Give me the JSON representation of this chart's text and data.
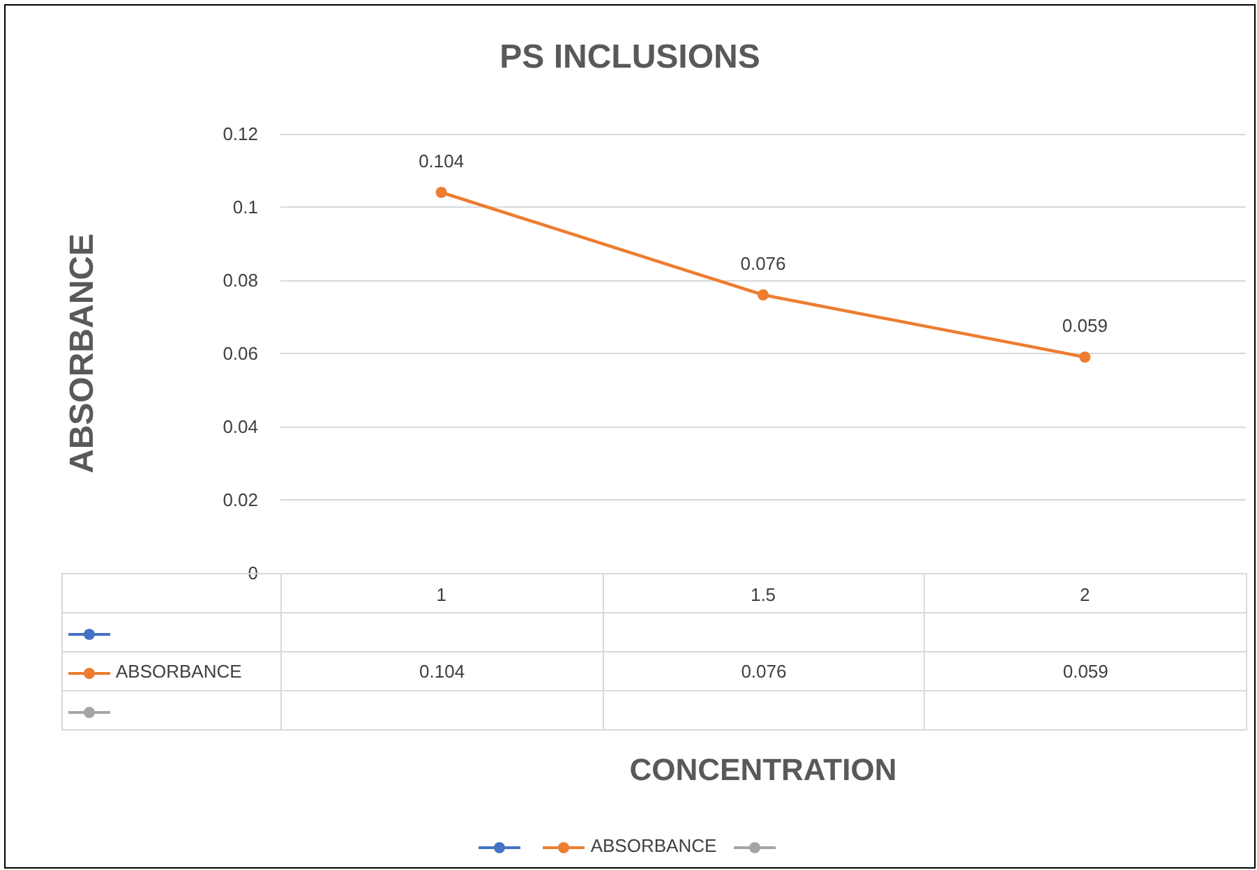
{
  "chart_data": {
    "type": "line",
    "title": "PS INCLUSIONS",
    "xlabel": "CONCENTRATION",
    "ylabel": "ABSORBANCE",
    "categories": [
      "1",
      "1.5",
      "2"
    ],
    "series": [
      {
        "color": "#4472c4",
        "values": [
          null,
          null,
          null
        ]
      },
      {
        "name": "ABSORBANCE",
        "color": "#ed7d31",
        "values": [
          0.104,
          0.076,
          0.059
        ],
        "value_labels": [
          "0.104",
          "0.076",
          "0.059"
        ]
      },
      {
        "color": "#a5a5a5",
        "values": [
          null,
          null,
          null
        ]
      }
    ],
    "ylim": [
      0,
      0.12
    ],
    "yticks": [
      0,
      0.02,
      0.04,
      0.06,
      0.08,
      0.1,
      0.12
    ],
    "grid": "y",
    "legend": "bottom",
    "marker": "circle",
    "line_style": "solid"
  }
}
